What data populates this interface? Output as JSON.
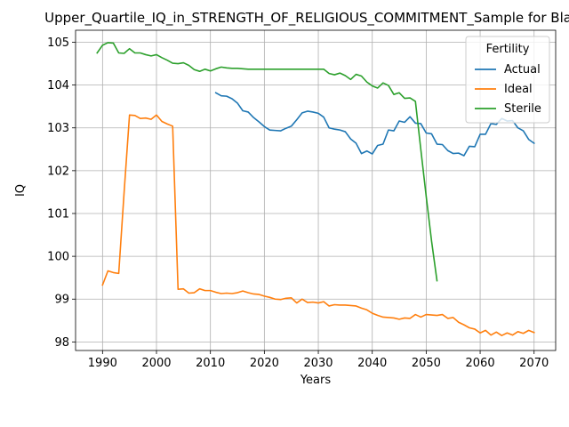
{
  "chart_data": {
    "type": "line",
    "title": "Upper_Quartile_IQ_in_STRENGTH_OF_RELIGIOUS_COMMITMENT_Sample for Black",
    "xlabel": "Years",
    "ylabel": "IQ",
    "xlim": [
      1985,
      2074
    ],
    "ylim": [
      97.8,
      105.28
    ],
    "x_ticks": [
      1990,
      2000,
      2010,
      2020,
      2030,
      2040,
      2050,
      2060,
      2070
    ],
    "y_ticks": [
      98,
      99,
      100,
      101,
      102,
      103,
      104,
      105
    ],
    "grid": true,
    "legend": {
      "title": "Fertility",
      "position": "upper right"
    },
    "series": [
      {
        "name": "Actual",
        "color": "#1f77b4",
        "x": [
          2011,
          2012,
          2013,
          2014,
          2015,
          2016,
          2017,
          2018,
          2019,
          2020,
          2021,
          2022,
          2023,
          2024,
          2025,
          2026,
          2027,
          2028,
          2029,
          2030,
          2031,
          2032,
          2033,
          2034,
          2035,
          2036,
          2037,
          2038,
          2039,
          2040,
          2041,
          2042,
          2043,
          2044,
          2045,
          2046,
          2047,
          2048,
          2049,
          2050,
          2051,
          2052,
          2053,
          2054,
          2055,
          2056,
          2057,
          2058,
          2059,
          2060,
          2061,
          2062,
          2063,
          2064,
          2065,
          2066,
          2067,
          2068,
          2069,
          2070
        ],
        "values": [
          103.82,
          103.75,
          103.74,
          103.68,
          103.58,
          103.4,
          103.37,
          103.24,
          103.14,
          103.03,
          102.95,
          102.94,
          102.93,
          102.99,
          103.04,
          103.19,
          103.35,
          103.39,
          103.37,
          103.34,
          103.25,
          103.0,
          102.97,
          102.95,
          102.91,
          102.74,
          102.64,
          102.4,
          102.46,
          102.39,
          102.59,
          102.62,
          102.95,
          102.93,
          103.16,
          103.13,
          103.26,
          103.11,
          103.1,
          102.88,
          102.86,
          102.62,
          102.61,
          102.47,
          102.4,
          102.41,
          102.35,
          102.57,
          102.56,
          102.85,
          102.85,
          103.1,
          103.08,
          103.22,
          103.16,
          103.17,
          103.0,
          102.93,
          102.73,
          102.64
        ]
      },
      {
        "name": "Ideal",
        "color": "#ff7f0e",
        "x": [
          1990,
          1991,
          1992,
          1993,
          1994,
          1995,
          1996,
          1997,
          1998,
          1999,
          2000,
          2001,
          2002,
          2003,
          2004,
          2005,
          2006,
          2007,
          2008,
          2009,
          2010,
          2011,
          2012,
          2013,
          2014,
          2015,
          2016,
          2017,
          2018,
          2019,
          2020,
          2021,
          2022,
          2023,
          2024,
          2025,
          2026,
          2027,
          2028,
          2029,
          2030,
          2031,
          2032,
          2033,
          2034,
          2035,
          2036,
          2037,
          2038,
          2039,
          2040,
          2041,
          2042,
          2043,
          2044,
          2045,
          2046,
          2047,
          2048,
          2049,
          2050,
          2051,
          2052,
          2053,
          2054,
          2055,
          2056,
          2057,
          2058,
          2059,
          2060,
          2061,
          2062,
          2063,
          2064,
          2065,
          2066,
          2067,
          2068,
          2069,
          2070
        ],
        "values": [
          99.33,
          99.66,
          99.62,
          99.6,
          101.5,
          103.3,
          103.29,
          103.22,
          103.23,
          103.2,
          103.3,
          103.15,
          103.09,
          103.04,
          99.23,
          99.24,
          99.14,
          99.15,
          99.24,
          99.2,
          99.2,
          99.16,
          99.13,
          99.14,
          99.13,
          99.15,
          99.19,
          99.15,
          99.12,
          99.11,
          99.07,
          99.04,
          99.0,
          98.99,
          99.02,
          99.03,
          98.91,
          99.0,
          98.92,
          98.93,
          98.91,
          98.94,
          98.84,
          98.87,
          98.86,
          98.86,
          98.85,
          98.84,
          98.79,
          98.75,
          98.67,
          98.62,
          98.58,
          98.57,
          98.56,
          98.53,
          98.56,
          98.55,
          98.64,
          98.58,
          98.64,
          98.63,
          98.62,
          98.64,
          98.55,
          98.57,
          98.46,
          98.4,
          98.33,
          98.3,
          98.21,
          98.27,
          98.16,
          98.23,
          98.15,
          98.21,
          98.16,
          98.24,
          98.2,
          98.27,
          98.22
        ]
      },
      {
        "name": "Sterile",
        "color": "#2ca02c",
        "x": [
          1989,
          1990,
          1991,
          1992,
          1993,
          1994,
          1995,
          1996,
          1997,
          1998,
          1999,
          2000,
          2001,
          2002,
          2003,
          2004,
          2005,
          2006,
          2007,
          2008,
          2009,
          2010,
          2011,
          2012,
          2013,
          2014,
          2015,
          2016,
          2017,
          2018,
          2019,
          2020,
          2021,
          2022,
          2023,
          2024,
          2025,
          2026,
          2027,
          2028,
          2029,
          2030,
          2031,
          2032,
          2033,
          2034,
          2035,
          2036,
          2037,
          2038,
          2039,
          2040,
          2041,
          2042,
          2043,
          2044,
          2045,
          2046,
          2047,
          2048,
          2049,
          2050,
          2051,
          2052
        ],
        "values": [
          104.75,
          104.93,
          104.99,
          104.98,
          104.75,
          104.74,
          104.85,
          104.75,
          104.75,
          104.71,
          104.68,
          104.71,
          104.64,
          104.58,
          104.51,
          104.5,
          104.52,
          104.46,
          104.36,
          104.32,
          104.37,
          104.33,
          104.38,
          104.42,
          104.4,
          104.39,
          104.39,
          104.38,
          104.37,
          104.37,
          104.37,
          104.37,
          104.37,
          104.37,
          104.37,
          104.37,
          104.37,
          104.37,
          104.37,
          104.37,
          104.37,
          104.37,
          104.37,
          104.27,
          104.24,
          104.28,
          104.22,
          104.13,
          104.25,
          104.21,
          104.07,
          103.98,
          103.93,
          104.05,
          103.99,
          103.78,
          103.82,
          103.69,
          103.7,
          103.62,
          102.5,
          101.4,
          100.35,
          99.43
        ]
      }
    ]
  }
}
